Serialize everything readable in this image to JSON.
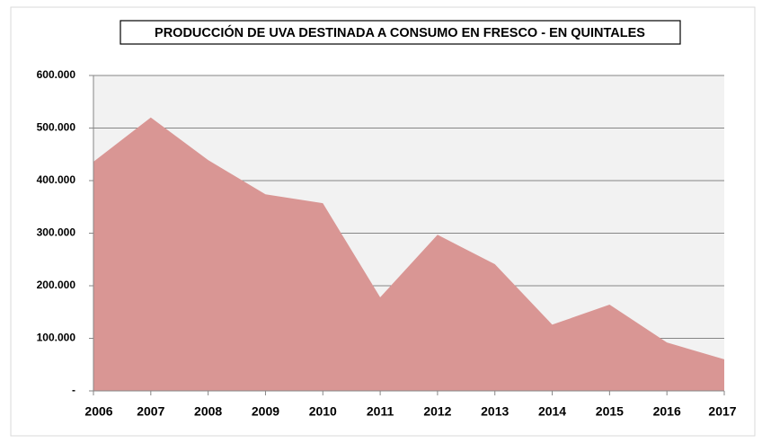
{
  "chart_data": {
    "type": "area",
    "title": "PRODUCCIÓN DE UVA DESTINADA A CONSUMO EN FRESCO - EN QUINTALES",
    "categories": [
      "2006",
      "2007",
      "2008",
      "2009",
      "2010",
      "2011",
      "2012",
      "2013",
      "2014",
      "2015",
      "2016",
      "2017"
    ],
    "values": [
      436000,
      520000,
      439000,
      374000,
      357000,
      178000,
      297000,
      241000,
      126000,
      164000,
      92000,
      60000
    ],
    "color": "#d99694",
    "ylim": [
      0,
      600000
    ],
    "yticks": [
      {
        "value": 0,
        "label": "-"
      },
      {
        "value": 100000,
        "label": "100.000"
      },
      {
        "value": 200000,
        "label": "200.000"
      },
      {
        "value": 300000,
        "label": "300.000"
      },
      {
        "value": 400000,
        "label": "400.000"
      },
      {
        "value": 500000,
        "label": "500.000"
      },
      {
        "value": 600000,
        "label": "600.000"
      }
    ],
    "grid": true
  }
}
